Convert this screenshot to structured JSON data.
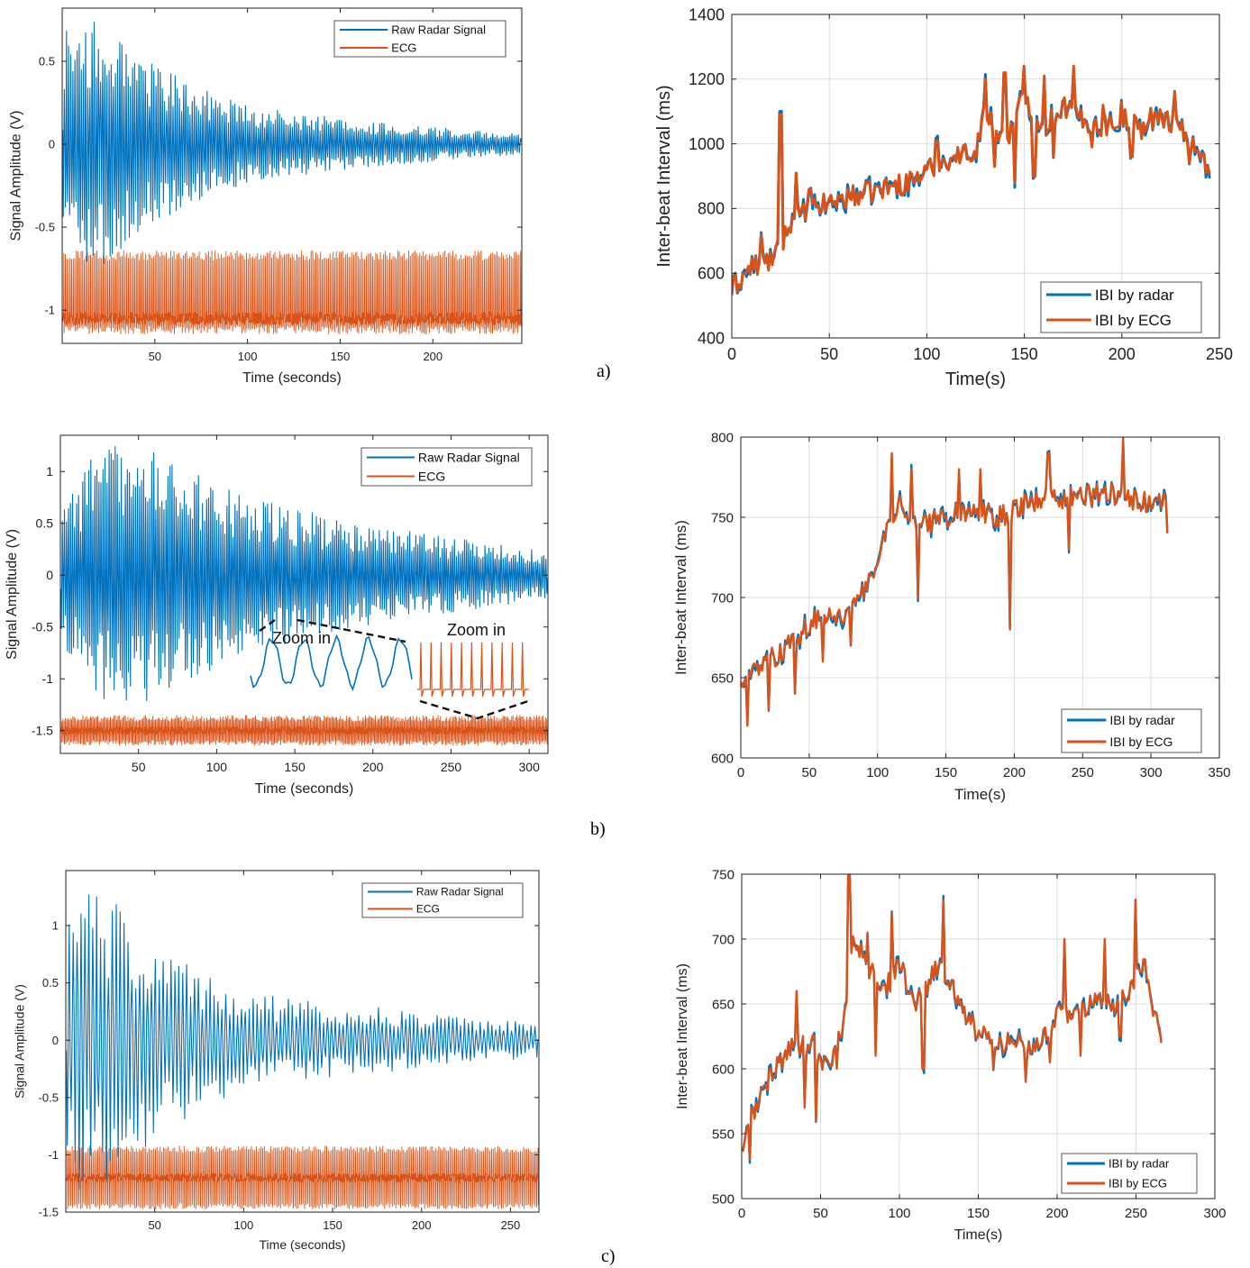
{
  "panels": [
    {
      "label": "a)"
    },
    {
      "label": "b)"
    },
    {
      "label": "c)"
    }
  ],
  "colors": {
    "radar": "#0072BD",
    "ecg": "#D95319",
    "axis": "#222222",
    "grid": "#dddddd"
  },
  "chart_data": [
    {
      "id": "a-left",
      "type": "line",
      "xlabel": "Time (seconds)",
      "ylabel": "Signal Amplitude (V)",
      "xlim": [
        0,
        248
      ],
      "ylim": [
        -1.2,
        0.82
      ],
      "xticks": [
        50,
        100,
        150,
        200
      ],
      "yticks": [
        -1,
        -0.5,
        0,
        0.5
      ],
      "ytick_labels": [
        "-1",
        "-0.5",
        "0",
        "0.5"
      ],
      "grid": false,
      "legend": "top-right",
      "series": [
        {
          "name": "Raw Radar Signal",
          "color": "#0072BD",
          "envelope": [
            [
              0,
              0.72
            ],
            [
              10,
              0.65
            ],
            [
              20,
              0.75
            ],
            [
              40,
              0.55
            ],
            [
              60,
              0.42
            ],
            [
              100,
              0.22
            ],
            [
              150,
              0.15
            ],
            [
              200,
              0.1
            ],
            [
              248,
              0.06
            ]
          ],
          "center": 0.0,
          "period_s": 1.15
        },
        {
          "name": "ECG",
          "color": "#D95319",
          "baseline": -1.05,
          "peak": -0.67,
          "trough": -1.12,
          "period_s": 0.85
        }
      ]
    },
    {
      "id": "a-right",
      "type": "line",
      "xlabel": "Time(s)",
      "ylabel": "Inter-beat Interval (ms)",
      "xlim": [
        0,
        250
      ],
      "ylim": [
        400,
        1400
      ],
      "xticks": [
        0,
        50,
        100,
        150,
        200,
        250
      ],
      "yticks": [
        400,
        600,
        800,
        1000,
        1200,
        1400
      ],
      "grid": true,
      "legend": "bottom-right",
      "series": [
        {
          "name": "IBI by radar",
          "color": "#0072BD"
        },
        {
          "name": "IBI by ECG",
          "color": "#D95319"
        }
      ],
      "trend": [
        [
          0,
          550
        ],
        [
          10,
          620
        ],
        [
          20,
          640
        ],
        [
          25,
          680
        ],
        [
          30,
          760
        ],
        [
          40,
          790
        ],
        [
          50,
          820
        ],
        [
          70,
          850
        ],
        [
          90,
          880
        ],
        [
          110,
          950
        ],
        [
          125,
          980
        ],
        [
          130,
          1100
        ],
        [
          140,
          1000
        ],
        [
          150,
          1150
        ],
        [
          160,
          1050
        ],
        [
          170,
          1120
        ],
        [
          180,
          1070
        ],
        [
          190,
          1050
        ],
        [
          200,
          1080
        ],
        [
          210,
          1050
        ],
        [
          220,
          1080
        ],
        [
          230,
          1060
        ],
        [
          240,
          950
        ],
        [
          245,
          940
        ]
      ],
      "spikes": [
        [
          15,
          720
        ],
        [
          25,
          1090
        ],
        [
          33,
          910
        ],
        [
          40,
          860
        ],
        [
          105,
          1010
        ],
        [
          130,
          1200
        ],
        [
          140,
          1220
        ],
        [
          150,
          1240
        ],
        [
          160,
          1210
        ],
        [
          175,
          1240
        ],
        [
          190,
          1120
        ],
        [
          200,
          1130
        ],
        [
          215,
          1110
        ],
        [
          227,
          1160
        ]
      ],
      "dips": [
        [
          135,
          930
        ],
        [
          145,
          880
        ],
        [
          155,
          900
        ],
        [
          165,
          960
        ],
        [
          185,
          990
        ],
        [
          205,
          960
        ],
        [
          235,
          940
        ]
      ]
    },
    {
      "id": "b-left",
      "type": "line",
      "xlabel": "Time (seconds)",
      "ylabel": "Signal Amplitude (V)",
      "xlim": [
        0,
        312
      ],
      "ylim": [
        -1.72,
        1.35
      ],
      "xticks": [
        50,
        100,
        150,
        200,
        250,
        300
      ],
      "yticks": [
        -1.5,
        -1,
        -0.5,
        0,
        0.5,
        1
      ],
      "ytick_labels": [
        "-1.5",
        "-1",
        "-0.5",
        "0",
        "0.5",
        "1"
      ],
      "grid": false,
      "legend": "top-right",
      "annotations": [
        "Zoom in",
        "Zoom in"
      ],
      "series": [
        {
          "name": "Raw Radar Signal",
          "color": "#0072BD",
          "envelope": [
            [
              0,
              0.6
            ],
            [
              20,
              1.1
            ],
            [
              45,
              1.25
            ],
            [
              80,
              1.0
            ],
            [
              120,
              0.75
            ],
            [
              180,
              0.5
            ],
            [
              250,
              0.35
            ],
            [
              312,
              0.22
            ]
          ],
          "center": 0.0,
          "period_s": 1.3
        },
        {
          "name": "ECG",
          "color": "#D95319",
          "baseline": -1.5,
          "peak": -1.38,
          "trough": -1.62,
          "period_s": 0.8
        }
      ]
    },
    {
      "id": "b-right",
      "type": "line",
      "xlabel": "Time(s)",
      "ylabel": "Inter-beat Interval (ms)",
      "xlim": [
        0,
        350
      ],
      "ylim": [
        600,
        800
      ],
      "xticks": [
        0,
        50,
        100,
        150,
        200,
        250,
        300,
        350
      ],
      "yticks": [
        600,
        650,
        700,
        750,
        800
      ],
      "grid": true,
      "legend": "bottom-right",
      "series": [
        {
          "name": "IBI by radar",
          "color": "#0072BD"
        },
        {
          "name": "IBI by ECG",
          "color": "#D95319"
        }
      ],
      "trend": [
        [
          0,
          650
        ],
        [
          20,
          660
        ],
        [
          40,
          675
        ],
        [
          60,
          690
        ],
        [
          80,
          690
        ],
        [
          95,
          710
        ],
        [
          105,
          740
        ],
        [
          115,
          760
        ],
        [
          130,
          745
        ],
        [
          150,
          750
        ],
        [
          170,
          755
        ],
        [
          190,
          750
        ],
        [
          210,
          760
        ],
        [
          240,
          762
        ],
        [
          270,
          765
        ],
        [
          290,
          760
        ],
        [
          312,
          760
        ]
      ],
      "spikes": [
        [
          5,
          700
        ],
        [
          60,
          730
        ],
        [
          110,
          790
        ],
        [
          125,
          780
        ],
        [
          160,
          780
        ],
        [
          175,
          780
        ],
        [
          225,
          790
        ],
        [
          280,
          800
        ]
      ],
      "dips": [
        [
          5,
          620
        ],
        [
          20,
          630
        ],
        [
          40,
          640
        ],
        [
          60,
          660
        ],
        [
          80,
          670
        ],
        [
          130,
          700
        ],
        [
          197,
          680
        ],
        [
          240,
          730
        ],
        [
          312,
          740
        ]
      ]
    },
    {
      "id": "c-left",
      "type": "line",
      "xlabel": "Time (seconds)",
      "ylabel": "Signal Amplitude (V)",
      "xlim": [
        0,
        266
      ],
      "ylim": [
        -1.5,
        1.48
      ],
      "xticks": [
        50,
        100,
        150,
        200,
        250
      ],
      "yticks": [
        -1.5,
        -1,
        -0.5,
        0,
        0.5,
        1
      ],
      "ytick_labels": [
        "-1.5",
        "-1",
        "-0.5",
        "0",
        "0.5",
        "1"
      ],
      "grid": false,
      "legend": "top-right",
      "series": [
        {
          "name": "Raw Radar Signal",
          "color": "#0072BD",
          "envelope": [
            [
              0,
              1.3
            ],
            [
              25,
              1.2
            ],
            [
              50,
              0.85
            ],
            [
              80,
              0.55
            ],
            [
              120,
              0.35
            ],
            [
              160,
              0.3
            ],
            [
              220,
              0.2
            ],
            [
              266,
              0.15
            ]
          ],
          "center": 0.0,
          "period_s": 2.2
        },
        {
          "name": "ECG",
          "color": "#D95319",
          "baseline": -1.2,
          "peak": -0.95,
          "trough": -1.45,
          "period_s": 0.9
        }
      ]
    },
    {
      "id": "c-right",
      "type": "line",
      "xlabel": "Time(s)",
      "ylabel": "Inter-beat Interval (ms)",
      "xlim": [
        0,
        300
      ],
      "ylim": [
        500,
        750
      ],
      "xticks": [
        0,
        50,
        100,
        150,
        200,
        250,
        300
      ],
      "yticks": [
        500,
        550,
        600,
        650,
        700,
        750
      ],
      "grid": true,
      "legend": "bottom-right",
      "series": [
        {
          "name": "IBI by radar",
          "color": "#0072BD"
        },
        {
          "name": "IBI by ECG",
          "color": "#D95319"
        }
      ],
      "trend": [
        [
          0,
          540
        ],
        [
          10,
          575
        ],
        [
          20,
          600
        ],
        [
          30,
          615
        ],
        [
          45,
          620
        ],
        [
          55,
          600
        ],
        [
          65,
          640
        ],
        [
          70,
          700
        ],
        [
          80,
          680
        ],
        [
          90,
          660
        ],
        [
          100,
          680
        ],
        [
          110,
          650
        ],
        [
          125,
          680
        ],
        [
          135,
          660
        ],
        [
          150,
          625
        ],
        [
          170,
          620
        ],
        [
          190,
          620
        ],
        [
          200,
          640
        ],
        [
          220,
          650
        ],
        [
          240,
          650
        ],
        [
          255,
          680
        ],
        [
          266,
          620
        ]
      ],
      "spikes": [
        [
          35,
          660
        ],
        [
          60,
          670
        ],
        [
          68,
          750
        ],
        [
          80,
          705
        ],
        [
          95,
          720
        ],
        [
          115,
          690
        ],
        [
          128,
          730
        ],
        [
          205,
          700
        ],
        [
          230,
          700
        ],
        [
          250,
          730
        ]
      ],
      "dips": [
        [
          5,
          530
        ],
        [
          40,
          570
        ],
        [
          47,
          560
        ],
        [
          60,
          600
        ],
        [
          85,
          610
        ],
        [
          115,
          600
        ],
        [
          160,
          600
        ],
        [
          180,
          590
        ],
        [
          195,
          605
        ],
        [
          215,
          610
        ],
        [
          240,
          625
        ],
        [
          266,
          620
        ]
      ]
    }
  ]
}
